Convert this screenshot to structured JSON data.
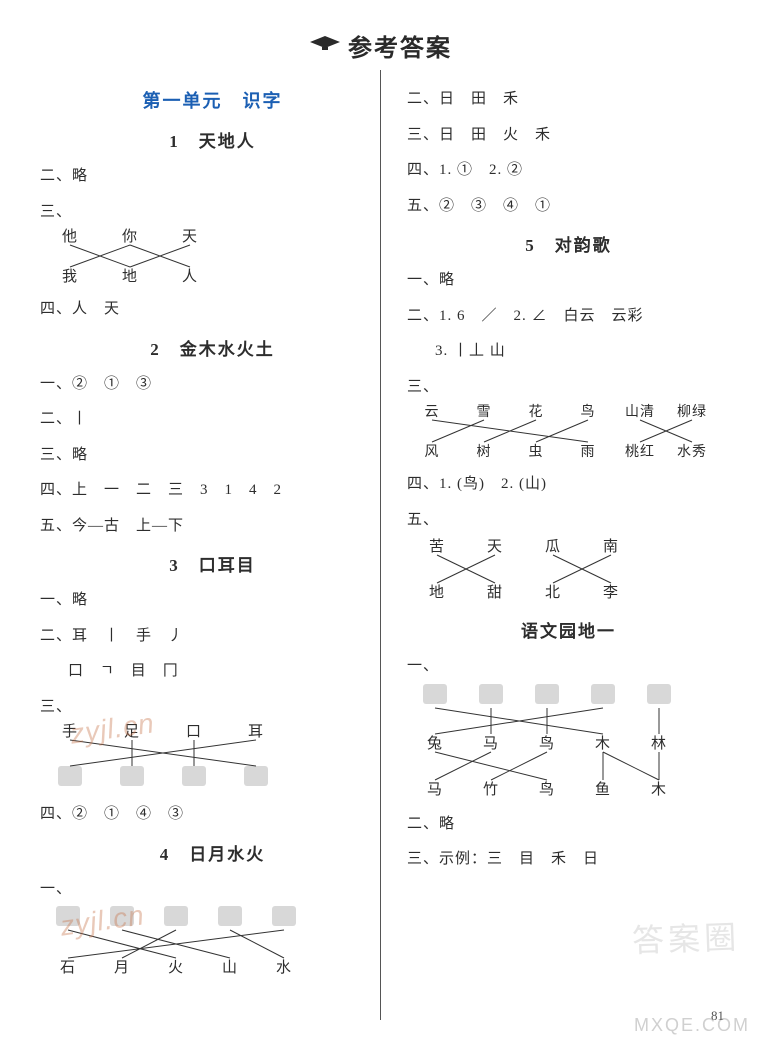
{
  "page": {
    "title": "参考答案",
    "unit_title": "第一单元　识字",
    "page_number": "81",
    "background": "#ffffff",
    "text_color": "#2d2d2d",
    "accent_color": "#1b5fb3",
    "fontsize_title": 24,
    "fontsize_unit": 18,
    "fontsize_lesson": 17,
    "fontsize_body": 15
  },
  "left": {
    "lesson1": {
      "title": "1　天地人",
      "q2": "二、略",
      "q3_label": "三、",
      "q3_top": [
        "他",
        "你",
        "天"
      ],
      "q3_bottom": [
        "我",
        "地",
        "人"
      ],
      "q3_lines": [
        [
          0,
          1
        ],
        [
          1,
          0
        ],
        [
          1,
          2
        ],
        [
          2,
          1
        ]
      ],
      "q4": "四、人　天"
    },
    "lesson2": {
      "title": "2　金木水火土",
      "q1": "一、②　①　③",
      "q2": "二、丨",
      "q3": "三、略",
      "q4": "四、上　一　二　三　3　1　4　2",
      "q5": "五、今—古　上—下"
    },
    "lesson3": {
      "title": "3　口耳目",
      "q1": "一、略",
      "q2a": "二、耳　丨　手　丿",
      "q2b": "口　ㄱ　目　冂",
      "q3_label": "三、",
      "q3_top": [
        "手",
        "足",
        "口",
        "耳"
      ],
      "q3_lines": [
        [
          0,
          3
        ],
        [
          1,
          1
        ],
        [
          2,
          2
        ],
        [
          3,
          0
        ]
      ],
      "q4": "四、②　①　④　③"
    },
    "lesson4": {
      "title": "4　日月水火",
      "q1_label": "一、",
      "q1_bottom": [
        "石",
        "月",
        "火",
        "山",
        "水"
      ],
      "q1_lines": [
        [
          0,
          2
        ],
        [
          1,
          3
        ],
        [
          2,
          1
        ],
        [
          3,
          4
        ],
        [
          4,
          0
        ]
      ]
    }
  },
  "right": {
    "cont4": {
      "q2": "二、日　田　禾",
      "q3": "三、日　田　火　禾",
      "q4": "四、1. ①　2. ②",
      "q5": "五、②　③　④　①"
    },
    "lesson5": {
      "title": "5　对韵歌",
      "q1": "一、略",
      "q2a": "二、1. 6　／　2. ∠　白云　云彩",
      "q2b": "3. 丨丄 山",
      "q3_label": "三、",
      "q3_top": [
        "云",
        "雪",
        "花",
        "鸟",
        "山清",
        "柳绿"
      ],
      "q3_bottom": [
        "风",
        "树",
        "虫",
        "雨",
        "桃红",
        "水秀"
      ],
      "q3_lines": [
        [
          0,
          3
        ],
        [
          1,
          0
        ],
        [
          2,
          1
        ],
        [
          3,
          2
        ],
        [
          4,
          5
        ],
        [
          5,
          4
        ]
      ],
      "q4": "四、1. (鸟)　2. (山)",
      "q5_label": "五、",
      "q5_top": [
        "苦",
        "天",
        "瓜",
        "南"
      ],
      "q5_bottom": [
        "地",
        "甜",
        "北",
        "李"
      ],
      "q5_lines": [
        [
          0,
          1
        ],
        [
          1,
          0
        ],
        [
          2,
          3
        ],
        [
          3,
          2
        ]
      ]
    },
    "garden": {
      "title": "语文园地一",
      "q1_label": "一、",
      "q1_mid": [
        "兔",
        "马",
        "鸟",
        "木",
        "林"
      ],
      "q1_bottom": [
        "马",
        "竹",
        "鸟",
        "鱼",
        "木"
      ],
      "q1_lines_top_mid": [
        [
          0,
          3
        ],
        [
          1,
          1
        ],
        [
          2,
          2
        ],
        [
          3,
          0
        ],
        [
          4,
          4
        ]
      ],
      "q1_lines_mid_bot": [
        [
          0,
          2
        ],
        [
          1,
          0
        ],
        [
          2,
          1
        ],
        [
          3,
          3
        ],
        [
          4,
          4
        ],
        [
          3,
          4
        ]
      ],
      "q2": "二、略",
      "q3": "三、示例：三　目　禾　日"
    }
  },
  "watermarks": {
    "w1": "答案圈",
    "w2": "MXQE.COM",
    "w3": "zyjl.cn",
    "w4": "zyjl.cn"
  },
  "style": {
    "line_color": "#333333",
    "line_width": 1,
    "svg_label_fontsize": 15
  }
}
